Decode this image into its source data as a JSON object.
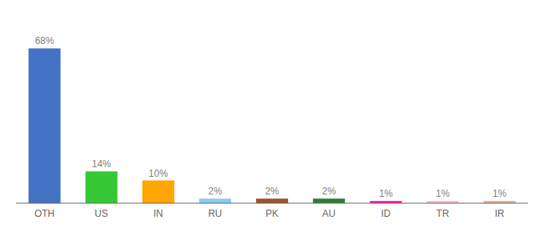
{
  "chart_data": {
    "type": "bar",
    "categories": [
      "OTH",
      "US",
      "IN",
      "RU",
      "PK",
      "AU",
      "ID",
      "TR",
      "IR"
    ],
    "values": [
      68,
      14,
      10,
      2,
      2,
      2,
      1,
      1,
      1
    ],
    "value_labels": [
      "68%",
      "14%",
      "10%",
      "2%",
      "2%",
      "2%",
      "1%",
      "1%",
      "1%"
    ],
    "colors": [
      "#4472C4",
      "#34C934",
      "#FFA500",
      "#87CEEB",
      "#A0522D",
      "#2E7D32",
      "#FF1493",
      "#FFB6C1",
      "#E8A898"
    ],
    "ylim": [
      0,
      78
    ],
    "data_labels": true,
    "tick_labels": "x",
    "grid": false
  }
}
